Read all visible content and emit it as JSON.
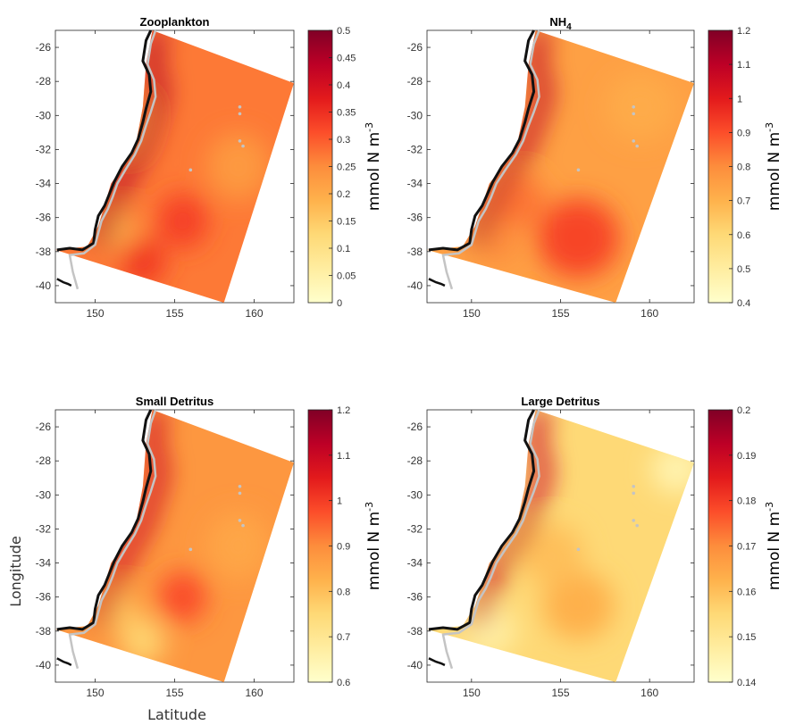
{
  "chart_data": [
    {
      "type": "heatmap",
      "title": "Zooplankton",
      "title_main": "Zooplankton",
      "title_sub": "",
      "colorbar_label_main": "mmol N m",
      "colorbar_label_sup": "-3",
      "clim": [
        0,
        0.5
      ],
      "colorbar_ticks": [
        0,
        0.05,
        0.1,
        0.15,
        0.2,
        0.25,
        0.3,
        0.35,
        0.4,
        0.45,
        0.5
      ],
      "colorbar_tick_labels": [
        "0",
        "0.05",
        "0.1",
        "0.15",
        "0.2",
        "0.25",
        "0.3",
        "0.35",
        "0.4",
        "0.45",
        "0.5"
      ],
      "x_ticks": [
        150,
        155,
        160
      ],
      "y_ticks": [
        -26,
        -28,
        -30,
        -32,
        -34,
        -36,
        -38,
        -40
      ],
      "xlim": [
        147.5,
        162.5
      ],
      "ylim": [
        -41,
        -25
      ],
      "background_value": 0.27,
      "hotspots": [
        {
          "lon": 155.5,
          "lat": -36.2,
          "value": 0.33,
          "spread": 1.6
        },
        {
          "lon": 151.5,
          "lat": -36.8,
          "value": 0.2,
          "spread": 1.2
        },
        {
          "lon": 153.0,
          "lat": -38.6,
          "value": 0.34,
          "spread": 1.4
        },
        {
          "lon": 159.0,
          "lat": -33.0,
          "value": 0.23,
          "spread": 2.0
        },
        {
          "lon": 152.0,
          "lat": -30.5,
          "value": 0.25,
          "spread": 1.5
        }
      ],
      "coastal_value": 0.45
    },
    {
      "type": "heatmap",
      "title": "NH4",
      "title_main": "NH",
      "title_sub": "4",
      "colorbar_label_main": "mmol N m",
      "colorbar_label_sup": "-3",
      "clim": [
        0.4,
        1.2
      ],
      "colorbar_ticks": [
        0.4,
        0.5,
        0.6,
        0.7,
        0.8,
        0.9,
        1,
        1.1,
        1.2
      ],
      "colorbar_tick_labels": [
        "0.4",
        "0.5",
        "0.6",
        "0.7",
        "0.8",
        "0.9",
        "1",
        "1.1",
        "1.2"
      ],
      "x_ticks": [
        150,
        155,
        160
      ],
      "y_ticks": [
        -26,
        -28,
        -30,
        -32,
        -34,
        -36,
        -38,
        -40
      ],
      "xlim": [
        147.5,
        162.5
      ],
      "ylim": [
        -41,
        -25
      ],
      "background_value": 0.75,
      "hotspots": [
        {
          "lon": 156.0,
          "lat": -37.2,
          "value": 0.92,
          "spread": 2.3
        },
        {
          "lon": 152.5,
          "lat": -35.0,
          "value": 0.84,
          "spread": 1.6
        },
        {
          "lon": 151.5,
          "lat": -37.5,
          "value": 0.8,
          "spread": 1.2
        },
        {
          "lon": 159.5,
          "lat": -29.5,
          "value": 0.72,
          "spread": 2.0
        }
      ],
      "coastal_value": 1.1
    },
    {
      "type": "heatmap",
      "title": "Small Detritus",
      "title_main": "Small Detritus",
      "title_sub": "",
      "colorbar_label_main": "mmol N m",
      "colorbar_label_sup": "-3",
      "clim": [
        0.6,
        1.2
      ],
      "colorbar_ticks": [
        0.6,
        0.7,
        0.8,
        0.9,
        1,
        1.1,
        1.2
      ],
      "colorbar_tick_labels": [
        "0.6",
        "0.7",
        "0.8",
        "0.9",
        "1",
        "1.1",
        "1.2"
      ],
      "x_ticks": [
        150,
        155,
        160
      ],
      "y_ticks": [
        -26,
        -28,
        -30,
        -32,
        -34,
        -36,
        -38,
        -40
      ],
      "xlim": [
        147.5,
        162.5
      ],
      "ylim": [
        -41,
        -25
      ],
      "xlabel": "Latitude",
      "ylabel": "Longitude",
      "background_value": 0.88,
      "hotspots": [
        {
          "lon": 155.5,
          "lat": -36.0,
          "value": 0.98,
          "spread": 1.5
        },
        {
          "lon": 151.5,
          "lat": -36.8,
          "value": 0.8,
          "spread": 1.2
        },
        {
          "lon": 153.0,
          "lat": -38.6,
          "value": 0.76,
          "spread": 1.4
        },
        {
          "lon": 159.0,
          "lat": -33.0,
          "value": 0.85,
          "spread": 2.0
        }
      ],
      "coastal_value": 1.1
    },
    {
      "type": "heatmap",
      "title": "Large Detritus",
      "title_main": "Large Detritus",
      "title_sub": "",
      "colorbar_label_main": "mmol N m",
      "colorbar_label_sup": "-3",
      "clim": [
        0.14,
        0.2
      ],
      "colorbar_ticks": [
        0.14,
        0.15,
        0.16,
        0.17,
        0.18,
        0.19,
        0.2
      ],
      "colorbar_tick_labels": [
        "0.14",
        "0.15",
        "0.16",
        "0.17",
        "0.18",
        "0.19",
        "0.2"
      ],
      "x_ticks": [
        150,
        155,
        160
      ],
      "y_ticks": [
        -26,
        -28,
        -30,
        -32,
        -34,
        -36,
        -38,
        -40
      ],
      "xlim": [
        147.5,
        162.5
      ],
      "ylim": [
        -41,
        -25
      ],
      "background_value": 0.155,
      "hotspots": [
        {
          "lon": 156.0,
          "lat": -36.5,
          "value": 0.163,
          "spread": 2.0
        },
        {
          "lon": 154.5,
          "lat": -33.5,
          "value": 0.16,
          "spread": 1.8
        },
        {
          "lon": 151.0,
          "lat": -38.0,
          "value": 0.147,
          "spread": 1.5
        },
        {
          "lon": 161.5,
          "lat": -28.5,
          "value": 0.145,
          "spread": 1.4
        }
      ],
      "coastal_value": 0.19
    }
  ],
  "colormap": [
    "#ffffcc",
    "#ffeda0",
    "#fed976",
    "#feb24c",
    "#fd8d3c",
    "#fc4e2a",
    "#e31a1c",
    "#bd0026",
    "#800026"
  ]
}
